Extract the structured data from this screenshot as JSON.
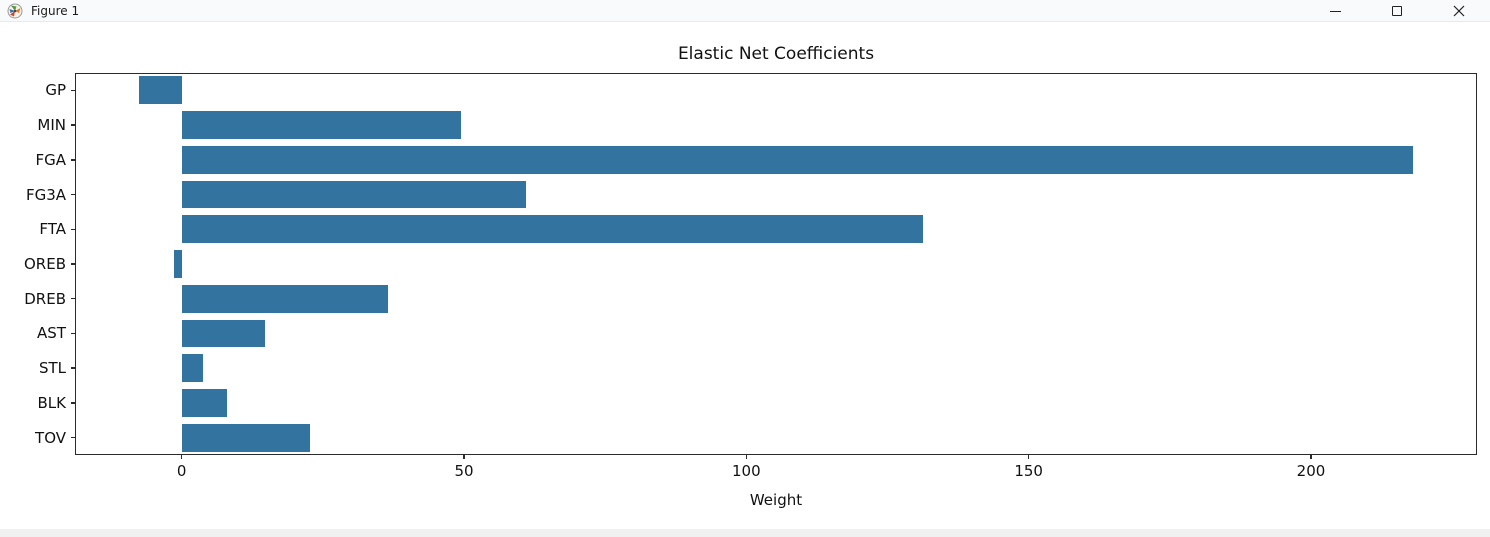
{
  "window": {
    "title": "Figure 1"
  },
  "chart_data": {
    "type": "bar",
    "orientation": "horizontal",
    "title": "Elastic Net Coefficients",
    "xlabel": "Weight",
    "ylabel": "",
    "categories": [
      "GP",
      "MIN",
      "FGA",
      "FG3A",
      "FTA",
      "OREB",
      "DREB",
      "AST",
      "STL",
      "BLK",
      "TOV"
    ],
    "values": [
      -7.6,
      49.4,
      218.1,
      60.9,
      131.3,
      -1.4,
      36.6,
      14.7,
      3.7,
      8.1,
      22.8
    ],
    "xticks": [
      0,
      50,
      100,
      150,
      200
    ],
    "xlim": [
      -18.9,
      229.4
    ],
    "bar_color": "#32739f",
    "grid": false,
    "legend": null
  }
}
